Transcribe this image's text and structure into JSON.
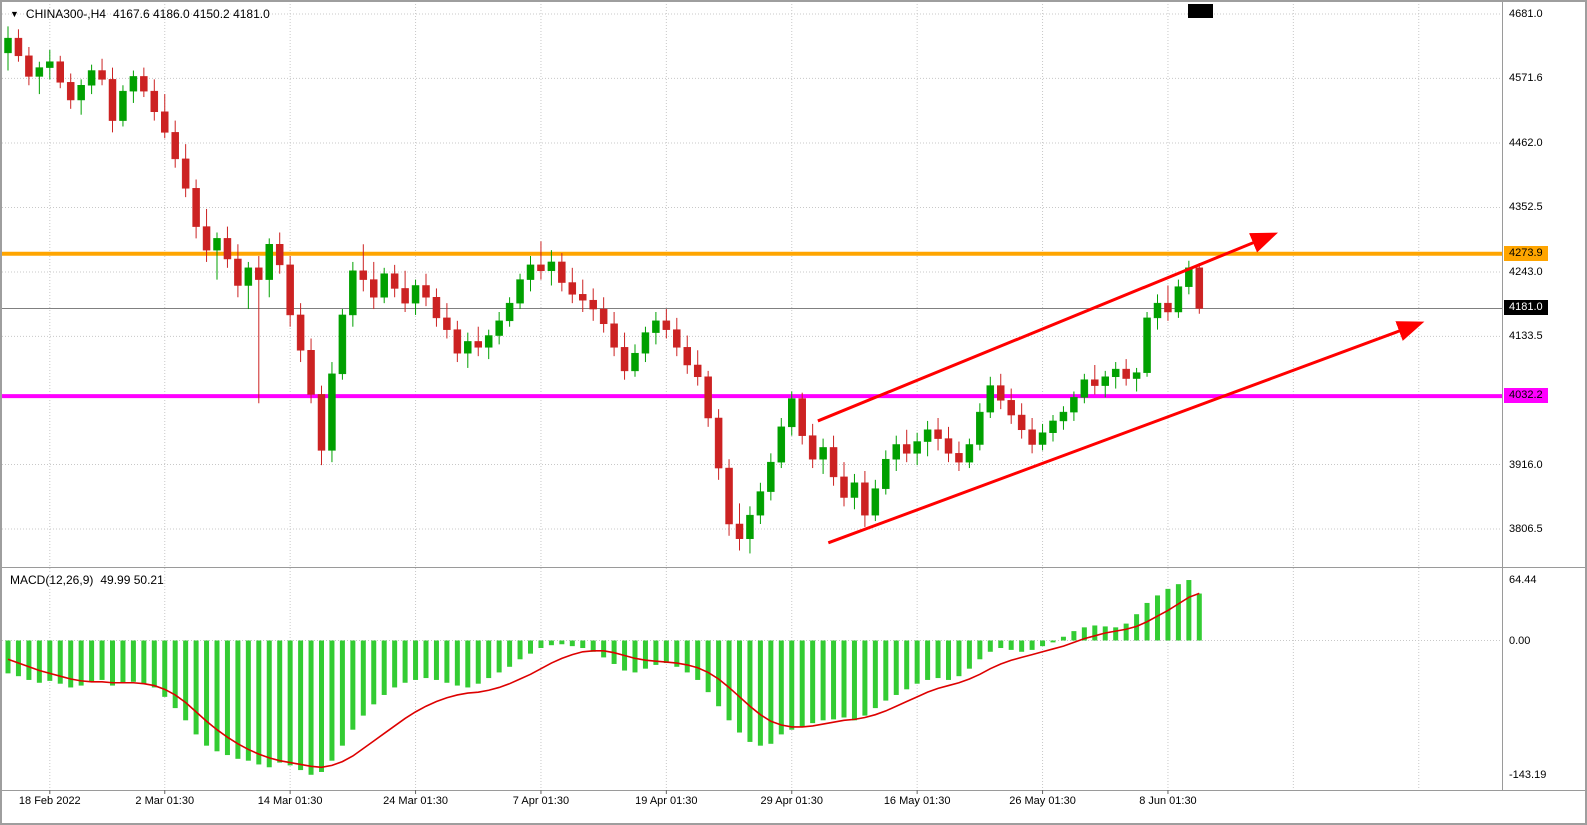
{
  "header": {
    "symbol": "CHINA300-,H4",
    "ohlc_text": "4167.6 4186.0 4150.2 4181.0"
  },
  "macd_header": {
    "label": "MACD(12,26,9)",
    "values": "49.99 50.21"
  },
  "chart_data": {
    "type": "candlestick",
    "symbol": "CHINA300-",
    "timeframe": "H4",
    "last_quote": {
      "open": 4167.6,
      "high": 4186.0,
      "low": 4150.2,
      "close": 4181.0
    },
    "price_axis": {
      "labels": [
        "4681.0",
        "4571.6",
        "4462.0",
        "4352.5",
        "4243.0",
        "4133.5",
        "3916.0",
        "3806.5"
      ]
    },
    "time_axis": {
      "labels": [
        "18 Feb 2022",
        "2 Mar 01:30",
        "14 Mar 01:30",
        "24 Mar 01:30",
        "7 Apr 01:30",
        "19 Apr 01:30",
        "29 Apr 01:30",
        "16 May 01:30",
        "26 May 01:30",
        "8 Jun 01:30"
      ],
      "tick_indices": [
        4,
        15,
        27,
        39,
        51,
        63,
        75,
        87,
        99,
        111
      ],
      "extra_tick_indices": [
        123,
        135
      ]
    },
    "hlines": [
      {
        "name": "resistance",
        "value": 4273.9,
        "label": "4273.9",
        "color": "#FFA500"
      },
      {
        "name": "support",
        "value": 4032.2,
        "label": "4032.2",
        "color": "#FF00FF"
      }
    ],
    "current_price": {
      "value": 4181.0,
      "label": "4181.0"
    },
    "trend_arrows": [
      {
        "from_index": 77.5,
        "from_price": 3990,
        "to_index": 121,
        "to_price": 4306
      },
      {
        "from_index": 78.5,
        "from_price": 3783,
        "to_index": 135,
        "to_price": 4155
      }
    ],
    "candles": [
      [
        4615,
        4660,
        4585,
        4640
      ],
      [
        4640,
        4655,
        4600,
        4610
      ],
      [
        4610,
        4625,
        4560,
        4575
      ],
      [
        4575,
        4600,
        4545,
        4590
      ],
      [
        4590,
        4620,
        4570,
        4600
      ],
      [
        4600,
        4610,
        4555,
        4565
      ],
      [
        4565,
        4580,
        4520,
        4535
      ],
      [
        4535,
        4570,
        4510,
        4560
      ],
      [
        4560,
        4595,
        4545,
        4585
      ],
      [
        4585,
        4605,
        4560,
        4570
      ],
      [
        4570,
        4590,
        4480,
        4500
      ],
      [
        4500,
        4560,
        4490,
        4550
      ],
      [
        4550,
        4585,
        4530,
        4575
      ],
      [
        4575,
        4590,
        4540,
        4550
      ],
      [
        4550,
        4570,
        4500,
        4515
      ],
      [
        4515,
        4545,
        4470,
        4480
      ],
      [
        4480,
        4500,
        4420,
        4435
      ],
      [
        4435,
        4460,
        4370,
        4385
      ],
      [
        4385,
        4400,
        4300,
        4320
      ],
      [
        4320,
        4350,
        4260,
        4280
      ],
      [
        4280,
        4310,
        4230,
        4300
      ],
      [
        4300,
        4320,
        4250,
        4265
      ],
      [
        4265,
        4290,
        4200,
        4220
      ],
      [
        4220,
        4260,
        4180,
        4250
      ],
      [
        4250,
        4270,
        4020,
        4230
      ],
      [
        4230,
        4300,
        4200,
        4290
      ],
      [
        4290,
        4310,
        4240,
        4255
      ],
      [
        4255,
        4270,
        4150,
        4170
      ],
      [
        4170,
        4190,
        4090,
        4110
      ],
      [
        4110,
        4130,
        4020,
        4035
      ],
      [
        4035,
        4050,
        3915,
        3940
      ],
      [
        3940,
        4090,
        3920,
        4070
      ],
      [
        4070,
        4180,
        4060,
        4170
      ],
      [
        4170,
        4260,
        4150,
        4245
      ],
      [
        4245,
        4290,
        4210,
        4230
      ],
      [
        4230,
        4260,
        4180,
        4200
      ],
      [
        4200,
        4250,
        4190,
        4240
      ],
      [
        4240,
        4255,
        4200,
        4215
      ],
      [
        4215,
        4245,
        4175,
        4190
      ],
      [
        4190,
        4230,
        4170,
        4220
      ],
      [
        4220,
        4240,
        4185,
        4200
      ],
      [
        4200,
        4215,
        4150,
        4165
      ],
      [
        4165,
        4190,
        4130,
        4145
      ],
      [
        4145,
        4160,
        4090,
        4105
      ],
      [
        4105,
        4140,
        4080,
        4125
      ],
      [
        4125,
        4150,
        4100,
        4115
      ],
      [
        4115,
        4145,
        4095,
        4135
      ],
      [
        4135,
        4175,
        4120,
        4160
      ],
      [
        4160,
        4200,
        4150,
        4190
      ],
      [
        4190,
        4240,
        4180,
        4230
      ],
      [
        4230,
        4270,
        4210,
        4255
      ],
      [
        4255,
        4295,
        4230,
        4245
      ],
      [
        4245,
        4280,
        4220,
        4260
      ],
      [
        4260,
        4275,
        4210,
        4225
      ],
      [
        4225,
        4250,
        4190,
        4205
      ],
      [
        4205,
        4230,
        4175,
        4195
      ],
      [
        4195,
        4215,
        4160,
        4180
      ],
      [
        4180,
        4200,
        4140,
        4155
      ],
      [
        4155,
        4175,
        4100,
        4115
      ],
      [
        4115,
        4140,
        4060,
        4075
      ],
      [
        4075,
        4120,
        4065,
        4105
      ],
      [
        4105,
        4150,
        4090,
        4140
      ],
      [
        4140,
        4175,
        4120,
        4160
      ],
      [
        4160,
        4180,
        4130,
        4145
      ],
      [
        4145,
        4165,
        4100,
        4115
      ],
      [
        4115,
        4135,
        4070,
        4085
      ],
      [
        4085,
        4110,
        4050,
        4065
      ],
      [
        4065,
        4075,
        3980,
        3995
      ],
      [
        3995,
        4010,
        3890,
        3910
      ],
      [
        3910,
        3925,
        3795,
        3815
      ],
      [
        3815,
        3850,
        3770,
        3790
      ],
      [
        3790,
        3845,
        3765,
        3830
      ],
      [
        3830,
        3885,
        3815,
        3870
      ],
      [
        3870,
        3935,
        3855,
        3920
      ],
      [
        3920,
        3995,
        3910,
        3980
      ],
      [
        3980,
        4040,
        3965,
        4028
      ],
      [
        4028,
        4038,
        3950,
        3965
      ],
      [
        3965,
        3985,
        3910,
        3925
      ],
      [
        3925,
        3960,
        3900,
        3945
      ],
      [
        3945,
        3965,
        3880,
        3895
      ],
      [
        3895,
        3920,
        3845,
        3860
      ],
      [
        3860,
        3900,
        3840,
        3885
      ],
      [
        3885,
        3905,
        3810,
        3830
      ],
      [
        3830,
        3890,
        3820,
        3875
      ],
      [
        3875,
        3940,
        3865,
        3925
      ],
      [
        3925,
        3965,
        3905,
        3950
      ],
      [
        3950,
        3975,
        3920,
        3935
      ],
      [
        3935,
        3970,
        3915,
        3955
      ],
      [
        3955,
        3990,
        3930,
        3975
      ],
      [
        3975,
        3995,
        3940,
        3960
      ],
      [
        3960,
        3980,
        3920,
        3935
      ],
      [
        3935,
        3955,
        3905,
        3920
      ],
      [
        3920,
        3960,
        3910,
        3950
      ],
      [
        3950,
        4020,
        3940,
        4005
      ],
      [
        4005,
        4065,
        3995,
        4050
      ],
      [
        4050,
        4070,
        4010,
        4025
      ],
      [
        4025,
        4045,
        3985,
        4000
      ],
      [
        4000,
        4020,
        3960,
        3975
      ],
      [
        3975,
        3995,
        3935,
        3950
      ],
      [
        3950,
        3985,
        3940,
        3970
      ],
      [
        3970,
        4000,
        3955,
        3990
      ],
      [
        3990,
        4015,
        3975,
        4005
      ],
      [
        4005,
        4040,
        3990,
        4030
      ],
      [
        4030,
        4070,
        4020,
        4060
      ],
      [
        4060,
        4085,
        4035,
        4050
      ],
      [
        4050,
        4075,
        4030,
        4065
      ],
      [
        4065,
        4090,
        4045,
        4078
      ],
      [
        4078,
        4095,
        4050,
        4062
      ],
      [
        4062,
        4080,
        4040,
        4072
      ],
      [
        4072,
        4175,
        4065,
        4165
      ],
      [
        4165,
        4205,
        4145,
        4190
      ],
      [
        4190,
        4220,
        4160,
        4175
      ],
      [
        4175,
        4230,
        4165,
        4218
      ],
      [
        4218,
        4262,
        4205,
        4250
      ],
      [
        4250,
        4258,
        4172,
        4181
      ]
    ],
    "macd": {
      "params": "12,26,9",
      "current_macd": 49.99,
      "current_signal": 50.21,
      "axis_labels": [
        "64.44",
        "0.00",
        "-143.19"
      ],
      "histogram": [
        -35,
        -38,
        -42,
        -45,
        -43,
        -46,
        -50,
        -48,
        -44,
        -42,
        -48,
        -45,
        -44,
        -46,
        -50,
        -60,
        -72,
        -85,
        -100,
        -112,
        -118,
        -122,
        -126,
        -128,
        -132,
        -135,
        -130,
        -133,
        -138,
        -143,
        -140,
        -128,
        -112,
        -95,
        -80,
        -68,
        -58,
        -50,
        -45,
        -42,
        -40,
        -42,
        -45,
        -48,
        -50,
        -46,
        -40,
        -34,
        -28,
        -20,
        -14,
        -8,
        -5,
        -4,
        -6,
        -8,
        -12,
        -18,
        -25,
        -32,
        -34,
        -30,
        -26,
        -24,
        -28,
        -34,
        -42,
        -55,
        -70,
        -85,
        -98,
        -108,
        -112,
        -110,
        -100,
        -95,
        -92,
        -88,
        -85,
        -84,
        -82,
        -85,
        -80,
        -72,
        -64,
        -58,
        -52,
        -46,
        -42,
        -40,
        -42,
        -38,
        -30,
        -20,
        -12,
        -8,
        -10,
        -12,
        -10,
        -6,
        -2,
        4,
        10,
        14,
        16,
        15,
        14,
        18,
        28,
        40,
        48,
        55,
        60,
        64.4,
        49.99
      ],
      "signal": [
        -20,
        -24,
        -28,
        -32,
        -35,
        -38,
        -41,
        -43,
        -44,
        -44,
        -45,
        -45,
        -45,
        -46,
        -48,
        -52,
        -58,
        -66,
        -76,
        -86,
        -95,
        -103,
        -110,
        -116,
        -121,
        -125,
        -128,
        -130,
        -132,
        -134,
        -135,
        -133,
        -129,
        -123,
        -115,
        -107,
        -99,
        -91,
        -83,
        -76,
        -70,
        -65,
        -61,
        -58,
        -56,
        -55,
        -53,
        -50,
        -46,
        -41,
        -36,
        -30,
        -24,
        -19,
        -15,
        -12,
        -11,
        -11,
        -13,
        -16,
        -19,
        -21,
        -22,
        -23,
        -24,
        -26,
        -29,
        -34,
        -41,
        -50,
        -60,
        -70,
        -79,
        -86,
        -90,
        -92,
        -92,
        -91,
        -89,
        -87,
        -85,
        -84,
        -82,
        -79,
        -75,
        -70,
        -65,
        -60,
        -55,
        -51,
        -48,
        -45,
        -41,
        -36,
        -30,
        -25,
        -21,
        -18,
        -15,
        -12,
        -9,
        -6,
        -2,
        2,
        5,
        8,
        10,
        12,
        15,
        20,
        26,
        32,
        39,
        46,
        50.21
      ]
    },
    "colors": {
      "up": "#00A000",
      "down": "#CC2222",
      "macd_hist": "#33CC33",
      "macd_signal": "#DD0000",
      "hline_resistance": "#FFA500",
      "hline_support": "#FF00FF",
      "trend_arrow": "#FF0000",
      "current_price_bg": "#000000",
      "grid": "#C8C8C8"
    }
  }
}
